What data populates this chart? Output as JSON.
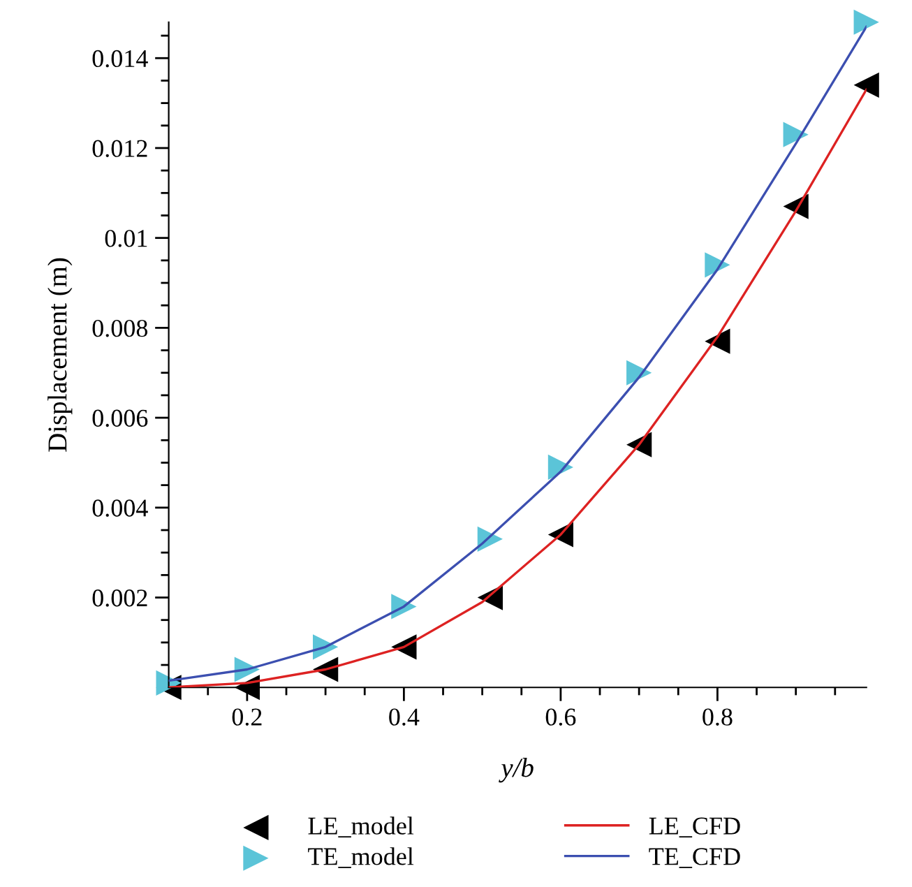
{
  "chart_data": {
    "type": "scatter",
    "xlabel": "y/b",
    "ylabel": "Displacement (m)",
    "xlim": [
      0.1,
      0.99
    ],
    "ylim": [
      0,
      0.0148
    ],
    "xticks": [
      {
        "value": 0.15,
        "label": null
      },
      0.2,
      {
        "value": 0.25,
        "label": null
      },
      {
        "value": 0.3,
        "label": null
      },
      {
        "value": 0.35,
        "label": null
      },
      0.4,
      {
        "value": 0.45,
        "label": null
      },
      {
        "value": 0.5,
        "label": null
      },
      {
        "value": 0.55,
        "label": null
      },
      0.6,
      {
        "value": 0.65,
        "label": null
      },
      {
        "value": 0.7,
        "label": null
      },
      {
        "value": 0.75,
        "label": null
      },
      0.8,
      {
        "value": 0.85,
        "label": null
      },
      {
        "value": 0.9,
        "label": null
      },
      {
        "value": 0.95,
        "label": null
      }
    ],
    "yticks": [
      {
        "value": 0.0005,
        "label": null
      },
      {
        "value": 0.001,
        "label": null
      },
      {
        "value": 0.0015,
        "label": null
      },
      0.002,
      {
        "value": 0.0025,
        "label": null
      },
      {
        "value": 0.003,
        "label": null
      },
      {
        "value": 0.0035,
        "label": null
      },
      0.004,
      {
        "value": 0.0045,
        "label": null
      },
      {
        "value": 0.005,
        "label": null
      },
      {
        "value": 0.0055,
        "label": null
      },
      0.006,
      {
        "value": 0.0065,
        "label": null
      },
      {
        "value": 0.007,
        "label": null
      },
      {
        "value": 0.0075,
        "label": null
      },
      0.008,
      {
        "value": 0.0085,
        "label": null
      },
      {
        "value": 0.009,
        "label": null
      },
      {
        "value": 0.0095,
        "label": null
      },
      0.01,
      {
        "value": 0.0105,
        "label": null
      },
      {
        "value": 0.011,
        "label": null
      },
      {
        "value": 0.0115,
        "label": null
      },
      0.012,
      {
        "value": 0.0125,
        "label": null
      },
      {
        "value": 0.013,
        "label": null
      },
      {
        "value": 0.0135,
        "label": null
      },
      0.014,
      {
        "value": 0.0145,
        "label": null
      }
    ],
    "grid": false,
    "legend": "bottom",
    "series": [
      {
        "name": "LE_model",
        "marker": "triangle-left",
        "color": "#000000",
        "x": [
          0.1,
          0.2,
          0.3,
          0.4,
          0.51,
          0.6,
          0.7,
          0.8,
          0.9,
          0.99
        ],
        "values": [
          0.0,
          0.0,
          0.0004,
          0.0009,
          0.002,
          0.0034,
          0.0054,
          0.0077,
          0.0107,
          0.0134
        ]
      },
      {
        "name": "TE_model",
        "marker": "triangle-right",
        "color": "#5bc4d8",
        "x": [
          0.1,
          0.2,
          0.3,
          0.4,
          0.51,
          0.6,
          0.7,
          0.8,
          0.9,
          0.99
        ],
        "values": [
          0.0001,
          0.0004,
          0.0009,
          0.0018,
          0.0033,
          0.0049,
          0.007,
          0.0094,
          0.0123,
          0.0148
        ]
      },
      {
        "name": "LE_CFD",
        "type": "line",
        "color": "#dd2222",
        "x": [
          0.1,
          0.2,
          0.3,
          0.4,
          0.5,
          0.6,
          0.7,
          0.8,
          0.9,
          0.99
        ],
        "values": [
          0.0,
          0.0001,
          0.0004,
          0.0009,
          0.0019,
          0.0034,
          0.0054,
          0.0078,
          0.0106,
          0.0133
        ]
      },
      {
        "name": "TE_CFD",
        "type": "line",
        "color": "#3c4fb0",
        "x": [
          0.1,
          0.2,
          0.3,
          0.4,
          0.5,
          0.6,
          0.7,
          0.8,
          0.9,
          0.99
        ],
        "values": [
          0.00015,
          0.0004,
          0.0009,
          0.0018,
          0.0032,
          0.0048,
          0.0069,
          0.0093,
          0.0121,
          0.0147
        ]
      }
    ]
  }
}
